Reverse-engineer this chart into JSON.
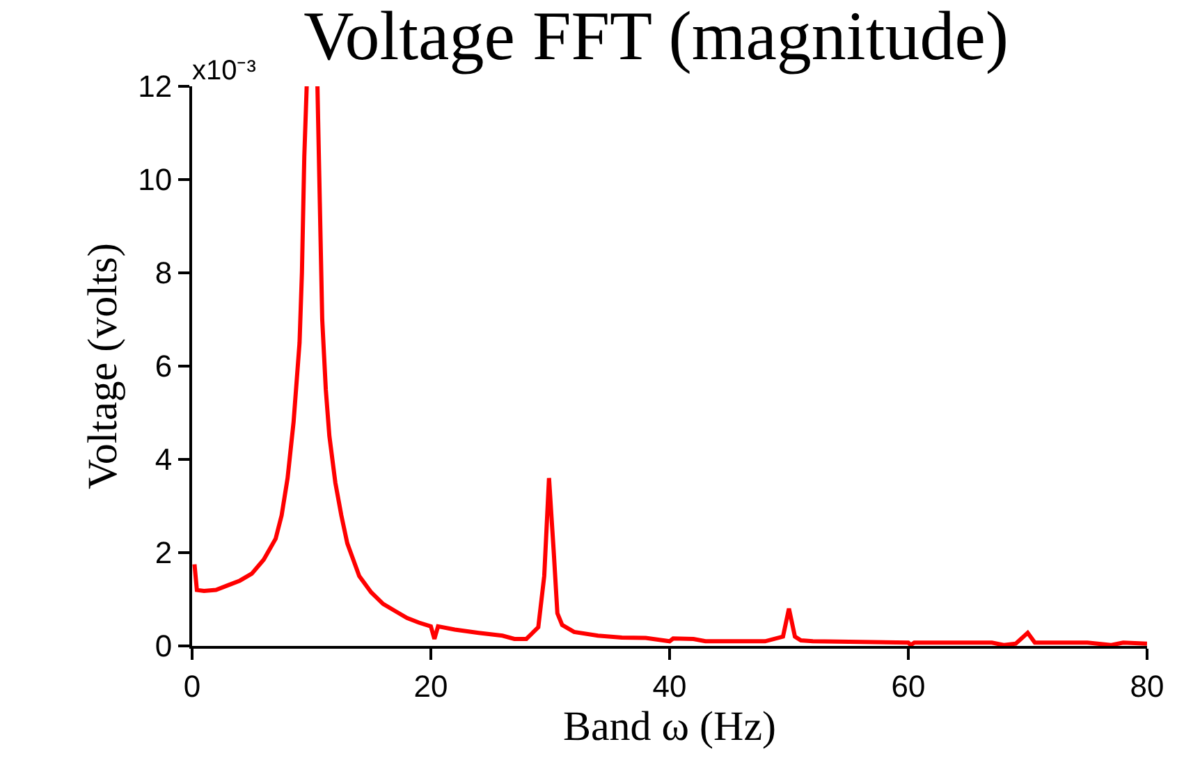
{
  "chart_data": {
    "type": "line",
    "title": "Voltage FFT (magnitude)",
    "xlabel": "Band ω (Hz)",
    "ylabel": "Voltage (volts)",
    "annotations": [
      "x10⁻³"
    ],
    "x": [
      0.2,
      0.4,
      1,
      2,
      3,
      4,
      5,
      6,
      7,
      7.5,
      8,
      8.5,
      9,
      9.2,
      9.4,
      9.6,
      10,
      10.5,
      10.7,
      10.9,
      11.2,
      11.5,
      12,
      12.5,
      13,
      14,
      15,
      16,
      17,
      18,
      19,
      20,
      20.3,
      20.6,
      22,
      24,
      26,
      27,
      28,
      29,
      29.5,
      29.9,
      30.3,
      30.6,
      31,
      32,
      34,
      36,
      38,
      40,
      40.3,
      42,
      43,
      48,
      49.5,
      50,
      50.5,
      51,
      52,
      60,
      60.2,
      60.5,
      67,
      68,
      69,
      70,
      70.6,
      75,
      77,
      78,
      80
    ],
    "series": [
      {
        "color": "#ff0000",
        "values": [
          1.75,
          1.2,
          1.18,
          1.2,
          1.3,
          1.4,
          1.55,
          1.85,
          2.3,
          2.8,
          3.6,
          4.8,
          6.5,
          8.0,
          10.5,
          12,
          null,
          12,
          9.5,
          7,
          5.5,
          4.5,
          3.5,
          2.8,
          2.2,
          1.5,
          1.15,
          0.9,
          0.75,
          0.6,
          0.5,
          0.42,
          0.15,
          0.42,
          0.35,
          0.28,
          0.22,
          0.15,
          0.15,
          0.4,
          1.5,
          3.6,
          2.0,
          0.7,
          0.45,
          0.3,
          0.22,
          0.18,
          0.17,
          0.1,
          0.16,
          0.15,
          0.1,
          0.1,
          0.2,
          0.8,
          0.2,
          0.12,
          0.1,
          0.07,
          0.02,
          0.07,
          0.07,
          0.02,
          0.05,
          0.28,
          0.07,
          0.07,
          0.02,
          0.07,
          0.05
        ]
      }
    ],
    "xlim": [
      0,
      80
    ],
    "xticks": [
      0,
      20,
      40,
      60,
      80
    ],
    "ylim": [
      0,
      12
    ],
    "yticks": [
      0,
      2,
      4,
      6,
      8,
      10,
      12
    ],
    "marker": "none",
    "line_style": "solid"
  }
}
